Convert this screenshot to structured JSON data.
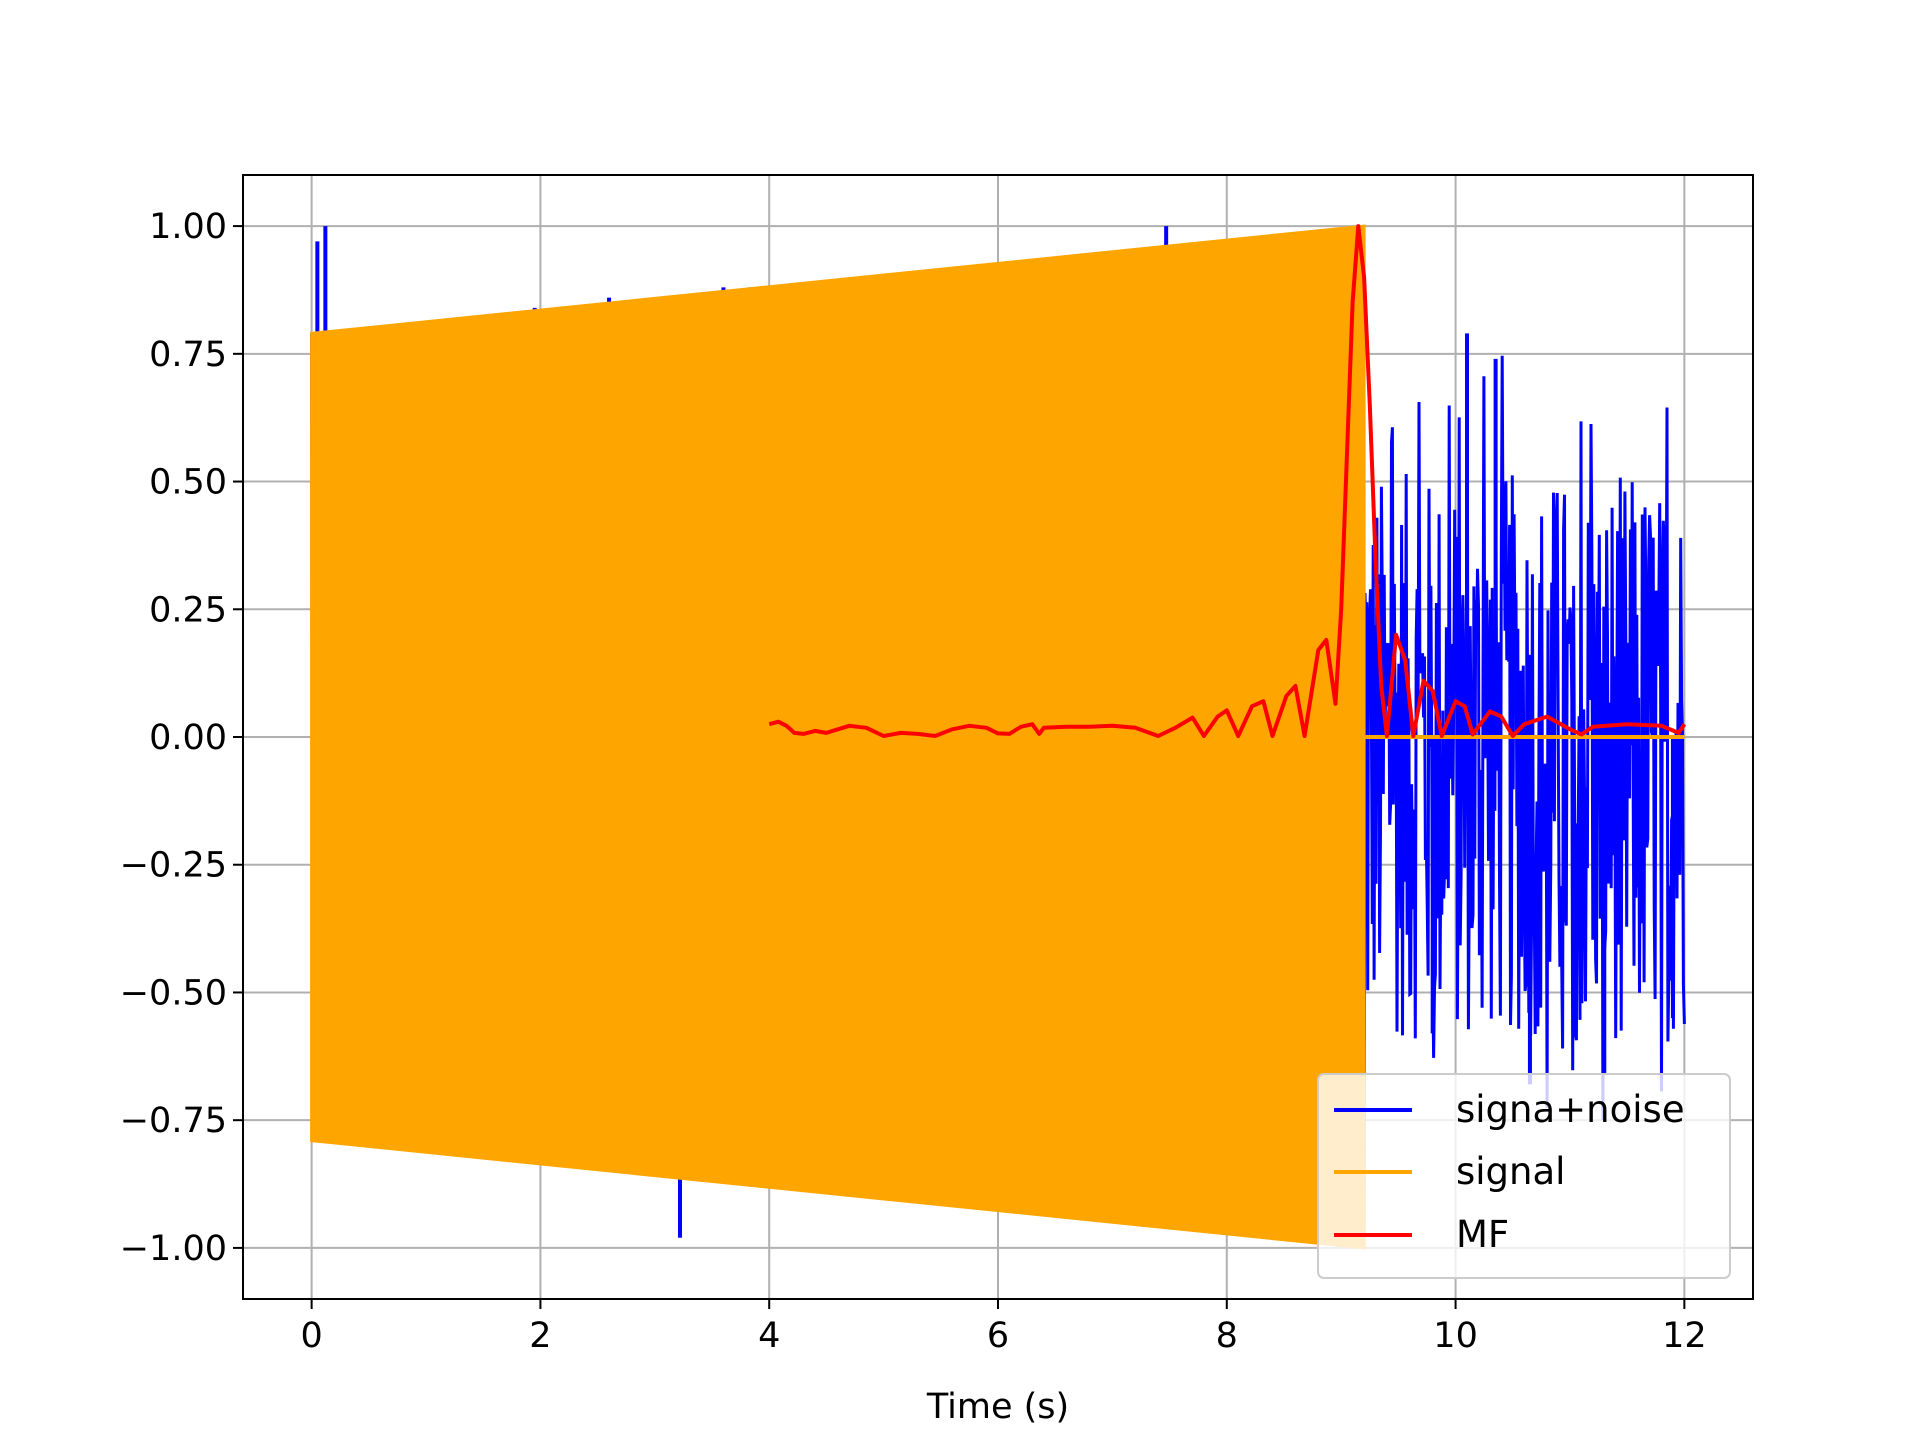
{
  "chart_data": {
    "type": "line",
    "title": "",
    "xlabel": "Time (s)",
    "ylabel": "",
    "xlim": [
      -0.6,
      12.6
    ],
    "ylim": [
      -1.1,
      1.1
    ],
    "xticks": [
      0,
      2,
      4,
      6,
      8,
      10,
      12
    ],
    "xtick_labels": [
      "0",
      "2",
      "4",
      "6",
      "8",
      "10",
      "12"
    ],
    "yticks": [
      1.0,
      0.75,
      0.5,
      0.25,
      0.0,
      -0.25,
      -0.5,
      -0.75,
      -1.0
    ],
    "ytick_labels": [
      "1.00",
      "0.75",
      "0.50",
      "0.25",
      "0.00",
      "−0.25",
      "−0.50",
      "−0.75",
      "−1.00"
    ],
    "grid": true,
    "legend_position": "bottom-right",
    "series": [
      {
        "name": "signa+noise",
        "color": "#0000ff",
        "x_range": [
          0,
          12
        ],
        "envelope_upper": [
          [
            0,
            0.79
          ],
          [
            1,
            0.8
          ],
          [
            2,
            0.82
          ],
          [
            3,
            0.84
          ],
          [
            4,
            0.86
          ],
          [
            5,
            0.87
          ],
          [
            6,
            0.89
          ],
          [
            7,
            0.92
          ],
          [
            8,
            0.96
          ],
          [
            9.2,
            1.0
          ],
          [
            9.25,
            0.52
          ],
          [
            12,
            0.52
          ]
        ],
        "envelope_lower": [
          [
            0,
            -0.79
          ],
          [
            1,
            -0.8
          ],
          [
            2,
            -0.82
          ],
          [
            3,
            -0.84
          ],
          [
            4,
            -0.86
          ],
          [
            5,
            -0.87
          ],
          [
            6,
            -0.89
          ],
          [
            7,
            -0.92
          ],
          [
            8,
            -0.96
          ],
          [
            9.2,
            -1.0
          ],
          [
            9.25,
            -0.6
          ],
          [
            12,
            -0.6
          ]
        ],
        "spikes": [
          [
            0.05,
            0.97
          ],
          [
            0.12,
            1.0
          ],
          [
            0.05,
            -0.79
          ],
          [
            1.95,
            0.84
          ],
          [
            2.6,
            0.86
          ],
          [
            3.22,
            -0.98
          ],
          [
            3.6,
            0.88
          ],
          [
            3.65,
            -0.87
          ],
          [
            3.83,
            0.88
          ],
          [
            6.05,
            0.9
          ],
          [
            7.47,
            1.0
          ],
          [
            9.8,
            -0.58
          ],
          [
            10.1,
            0.79
          ],
          [
            10.35,
            0.74
          ],
          [
            10.65,
            -0.68
          ],
          [
            11.3,
            -0.66
          ],
          [
            11.9,
            -0.55
          ]
        ]
      },
      {
        "name": "signal",
        "color": "#ffa500",
        "envelope_upper": [
          [
            0,
            0.79
          ],
          [
            9.2,
            1.0
          ]
        ],
        "envelope_lower": [
          [
            0,
            -0.79
          ],
          [
            9.2,
            -1.0
          ]
        ],
        "zero_segment": [
          9.2,
          12
        ]
      },
      {
        "name": "MF",
        "color": "#ff0000",
        "points": [
          [
            4.0,
            0.025
          ],
          [
            4.08,
            0.03
          ],
          [
            4.15,
            0.022
          ],
          [
            4.22,
            0.008
          ],
          [
            4.3,
            0.006
          ],
          [
            4.4,
            0.012
          ],
          [
            4.5,
            0.008
          ],
          [
            4.6,
            0.015
          ],
          [
            4.7,
            0.022
          ],
          [
            4.85,
            0.018
          ],
          [
            5.0,
            0.002
          ],
          [
            5.15,
            0.008
          ],
          [
            5.3,
            0.006
          ],
          [
            5.45,
            0.002
          ],
          [
            5.6,
            0.015
          ],
          [
            5.75,
            0.022
          ],
          [
            5.9,
            0.018
          ],
          [
            6.0,
            0.007
          ],
          [
            6.1,
            0.006
          ],
          [
            6.2,
            0.02
          ],
          [
            6.3,
            0.025
          ],
          [
            6.36,
            0.006
          ],
          [
            6.4,
            0.018
          ],
          [
            6.6,
            0.02
          ],
          [
            6.8,
            0.02
          ],
          [
            7.0,
            0.022
          ],
          [
            7.2,
            0.018
          ],
          [
            7.4,
            0.002
          ],
          [
            7.55,
            0.018
          ],
          [
            7.7,
            0.038
          ],
          [
            7.8,
            0.002
          ],
          [
            7.92,
            0.04
          ],
          [
            8.0,
            0.052
          ],
          [
            8.1,
            0.002
          ],
          [
            8.22,
            0.06
          ],
          [
            8.32,
            0.07
          ],
          [
            8.4,
            0.002
          ],
          [
            8.52,
            0.08
          ],
          [
            8.6,
            0.1
          ],
          [
            8.68,
            0.002
          ],
          [
            8.8,
            0.17
          ],
          [
            8.87,
            0.19
          ],
          [
            8.95,
            0.065
          ],
          [
            9.0,
            0.25
          ],
          [
            9.05,
            0.55
          ],
          [
            9.1,
            0.85
          ],
          [
            9.15,
            1.0
          ],
          [
            9.2,
            0.9
          ],
          [
            9.25,
            0.65
          ],
          [
            9.3,
            0.35
          ],
          [
            9.35,
            0.1
          ],
          [
            9.4,
            0.002
          ],
          [
            9.48,
            0.2
          ],
          [
            9.56,
            0.15
          ],
          [
            9.63,
            0.002
          ],
          [
            9.72,
            0.11
          ],
          [
            9.8,
            0.09
          ],
          [
            9.88,
            0.002
          ],
          [
            10.0,
            0.07
          ],
          [
            10.08,
            0.06
          ],
          [
            10.15,
            0.005
          ],
          [
            10.3,
            0.05
          ],
          [
            10.4,
            0.04
          ],
          [
            10.5,
            0.002
          ],
          [
            10.6,
            0.025
          ],
          [
            10.8,
            0.04
          ],
          [
            11.0,
            0.015
          ],
          [
            11.1,
            0.005
          ],
          [
            11.2,
            0.02
          ],
          [
            11.5,
            0.025
          ],
          [
            11.8,
            0.022
          ],
          [
            11.95,
            0.008
          ],
          [
            12.0,
            0.025
          ]
        ]
      }
    ]
  }
}
